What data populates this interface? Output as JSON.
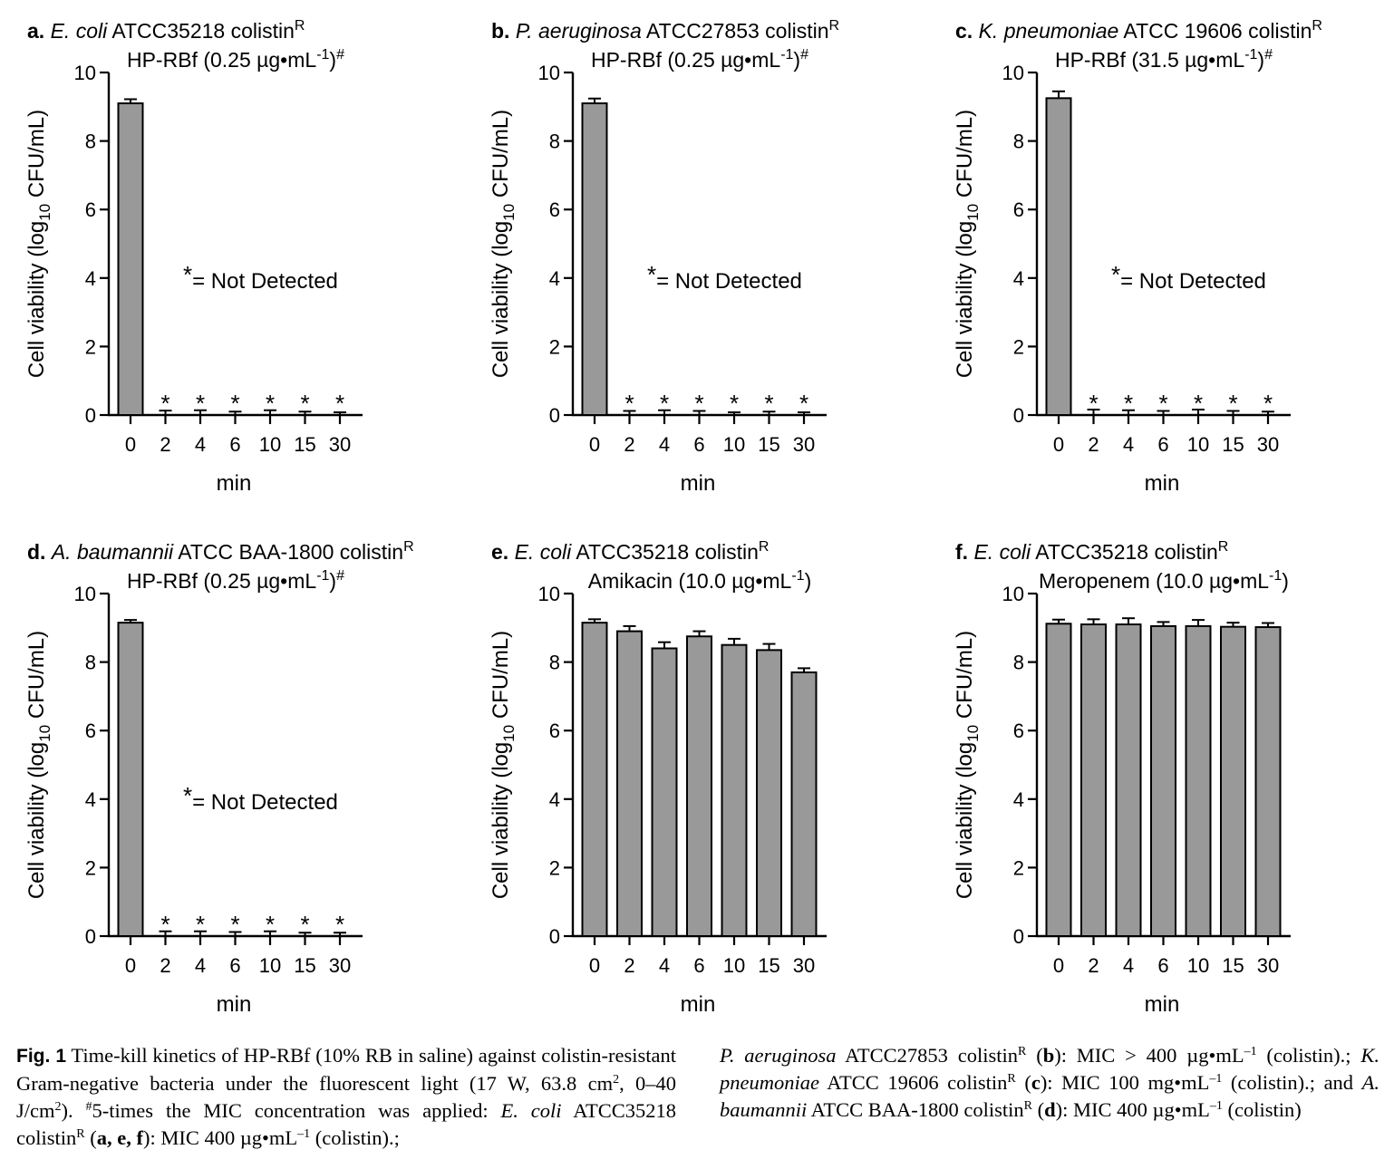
{
  "chart_data": [
    {
      "type": "bar",
      "panel_letter": "a.",
      "organism": "E. coli",
      "strain": "ATCC35218 colistin",
      "strain_sup": "R",
      "treatment": "HP-RBf (0.25 µg•mL",
      "treatment_sup": "-1",
      "treatment_close": ")",
      "treatment_mark": "#",
      "ylabel_pre": "Cell viability (log",
      "ylabel_sub": "10",
      "ylabel_post": " CFU/mL)",
      "xlabel": "min",
      "categories": [
        "0",
        "2",
        "4",
        "6",
        "10",
        "15",
        "30"
      ],
      "values": [
        9.1,
        0,
        0,
        0,
        0,
        0,
        0
      ],
      "errors": [
        0.12,
        0.13,
        0.14,
        0.1,
        0.14,
        0.1,
        0.08
      ],
      "not_detected": [
        false,
        true,
        true,
        true,
        true,
        true,
        true
      ],
      "annotation_star": "*",
      "annotation_text": "= Not Detected",
      "ylim": [
        0,
        10
      ],
      "yticks": [
        "0",
        "2",
        "4",
        "6",
        "8",
        "10"
      ],
      "bar_color": "#999999"
    },
    {
      "type": "bar",
      "panel_letter": "b.",
      "organism": "P. aeruginosa",
      "strain": "ATCC27853 colistin",
      "strain_sup": "R",
      "treatment": "HP-RBf (0.25 µg•mL",
      "treatment_sup": "-1",
      "treatment_close": ")",
      "treatment_mark": "#",
      "ylabel_pre": "Cell viability (log",
      "ylabel_sub": "10",
      "ylabel_post": " CFU/mL)",
      "xlabel": "min",
      "categories": [
        "0",
        "2",
        "4",
        "6",
        "10",
        "15",
        "30"
      ],
      "values": [
        9.1,
        0,
        0,
        0,
        0,
        0,
        0
      ],
      "errors": [
        0.14,
        0.12,
        0.14,
        0.12,
        0.08,
        0.1,
        0.08
      ],
      "not_detected": [
        false,
        true,
        true,
        true,
        true,
        true,
        true
      ],
      "annotation_star": "*",
      "annotation_text": "= Not Detected",
      "ylim": [
        0,
        10
      ],
      "yticks": [
        "0",
        "2",
        "4",
        "6",
        "8",
        "10"
      ],
      "bar_color": "#999999"
    },
    {
      "type": "bar",
      "panel_letter": "c.",
      "organism": "K. pneumoniae",
      "strain": "ATCC 19606 colistin",
      "strain_sup": "R",
      "treatment": "HP-RBf (31.5 µg•mL",
      "treatment_sup": "-1",
      "treatment_close": ")",
      "treatment_mark": "#",
      "ylabel_pre": "Cell viability (log",
      "ylabel_sub": "10",
      "ylabel_post": " CFU/mL)",
      "xlabel": "min",
      "categories": [
        "0",
        "2",
        "4",
        "6",
        "10",
        "15",
        "30"
      ],
      "values": [
        9.25,
        0,
        0,
        0,
        0,
        0,
        0
      ],
      "errors": [
        0.2,
        0.16,
        0.14,
        0.12,
        0.16,
        0.12,
        0.1
      ],
      "not_detected": [
        false,
        true,
        true,
        true,
        true,
        true,
        true
      ],
      "annotation_star": "*",
      "annotation_text": "= Not Detected",
      "ylim": [
        0,
        10
      ],
      "yticks": [
        "0",
        "2",
        "4",
        "6",
        "8",
        "10"
      ],
      "bar_color": "#999999"
    },
    {
      "type": "bar",
      "panel_letter": "d.",
      "organism": "A. baumannii",
      "strain": "ATCC BAA-1800 colistin",
      "strain_sup": "R",
      "treatment": "HP-RBf (0.25 µg•mL",
      "treatment_sup": "-1",
      "treatment_close": ")",
      "treatment_mark": "#",
      "ylabel_pre": "Cell viability (log",
      "ylabel_sub": "10",
      "ylabel_post": " CFU/mL)",
      "xlabel": "min",
      "categories": [
        "0",
        "2",
        "4",
        "6",
        "10",
        "15",
        "30"
      ],
      "values": [
        9.15,
        0,
        0,
        0,
        0,
        0,
        0
      ],
      "errors": [
        0.08,
        0.14,
        0.14,
        0.12,
        0.14,
        0.1,
        0.1
      ],
      "not_detected": [
        false,
        true,
        true,
        true,
        true,
        true,
        true
      ],
      "annotation_star": "*",
      "annotation_text": "= Not Detected",
      "ylim": [
        0,
        10
      ],
      "yticks": [
        "0",
        "2",
        "4",
        "6",
        "8",
        "10"
      ],
      "bar_color": "#999999"
    },
    {
      "type": "bar",
      "panel_letter": "e.",
      "organism": "E. coli",
      "strain": "ATCC35218 colistin",
      "strain_sup": "R",
      "treatment": "Amikacin (10.0 µg•mL",
      "treatment_sup": "-1",
      "treatment_close": ")",
      "treatment_mark": "",
      "ylabel_pre": "Cell viability (log",
      "ylabel_sub": "10",
      "ylabel_post": " CFU/mL)",
      "xlabel": "min",
      "categories": [
        "0",
        "2",
        "4",
        "6",
        "10",
        "15",
        "30"
      ],
      "values": [
        9.15,
        8.9,
        8.4,
        8.75,
        8.5,
        8.35,
        7.7
      ],
      "errors": [
        0.1,
        0.15,
        0.18,
        0.15,
        0.18,
        0.18,
        0.12
      ],
      "not_detected": [
        false,
        false,
        false,
        false,
        false,
        false,
        false
      ],
      "annotation_star": "",
      "annotation_text": "",
      "ylim": [
        0,
        10
      ],
      "yticks": [
        "0",
        "2",
        "4",
        "6",
        "8",
        "10"
      ],
      "bar_color": "#999999"
    },
    {
      "type": "bar",
      "panel_letter": "f.",
      "organism": "E. coli",
      "strain": "ATCC35218 colistin",
      "strain_sup": "R",
      "treatment": "Meropenem (10.0 µg•mL",
      "treatment_sup": "-1",
      "treatment_close": ")",
      "treatment_mark": "",
      "ylabel_pre": "Cell viability (log",
      "ylabel_sub": "10",
      "ylabel_post": " CFU/mL)",
      "xlabel": "min",
      "categories": [
        "0",
        "2",
        "4",
        "6",
        "10",
        "15",
        "30"
      ],
      "values": [
        9.12,
        9.1,
        9.1,
        9.05,
        9.05,
        9.03,
        9.02
      ],
      "errors": [
        0.12,
        0.15,
        0.18,
        0.12,
        0.18,
        0.12,
        0.12
      ],
      "not_detected": [
        false,
        false,
        false,
        false,
        false,
        false,
        false
      ],
      "annotation_star": "",
      "annotation_text": "",
      "ylim": [
        0,
        10
      ],
      "yticks": [
        "0",
        "2",
        "4",
        "6",
        "8",
        "10"
      ],
      "bar_color": "#999999"
    }
  ],
  "caption": {
    "fig_label": "Fig. 1",
    "text1": " Time-kill kinetics of HP-RBf (10% RB in saline) against colistin-resistant Gram-negative bacteria under the fluorescent light (17 W, 63.8 cm",
    "sup1": "2",
    "text2": ", 0–40 J/cm",
    "sup2": "2",
    "text3": "). ",
    "sup3": "#",
    "text4": "5-times the MIC concentration was applied: ",
    "ecoli": "E. coli",
    "text5": " ATCC35218 colistin",
    "sup4": "R",
    "text6": " (",
    "bold_aef": "a, e, f",
    "text7": "): MIC 400 µg•mL",
    "sup5": "–1",
    "text8": " (colistin).; ",
    "paer": "P. aeruginosa",
    "text9": " ATCC27853 colistin",
    "sup6": "R",
    "text10": " (",
    "bold_b": "b",
    "text11": "): MIC > 400 µg•mL",
    "sup7": "–1",
    "text12": " (colistin).; ",
    "kpn": "K. pneumoniae",
    "text13": " ATCC 19606 colistin",
    "sup8": "R",
    "text14": " (",
    "bold_c": "c",
    "text15": "): MIC 100 mg•mL",
    "sup9": "–1",
    "text16": " (colistin).; and ",
    "abau": "A. baumannii",
    "text17": " ATCC BAA-1800 colistin",
    "sup10": "R",
    "text18": " (",
    "bold_d": "d",
    "text19": "): MIC 400 µg•mL",
    "sup11": "–1",
    "text20": " (colistin)"
  }
}
